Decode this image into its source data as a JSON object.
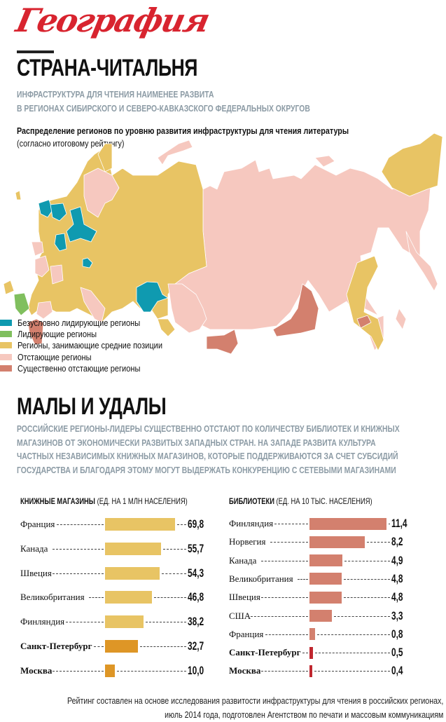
{
  "rubric": "География",
  "section1": {
    "title": "СТРАНА-ЧИТАЛЬНЯ",
    "subtitle_lines": [
      "ИНФРАСТРУКТУРА ДЛЯ ЧТЕНИЯ НАИМЕНЕЕ РАЗВИТА",
      "В РЕГИОНАХ СИБИРСКОГО И СЕВЕРО-КАВКАЗСКОГО ФЕДЕРАЛЬНЫХ ОКРУГОВ"
    ],
    "map_title": "Распределение регионов по уровню развития инфраструктуры для чтения литературы",
    "map_subtitle": "(согласно итоговому рейтингу)",
    "legend": [
      {
        "label": "Безусловно лидирующие регионы",
        "color": "#0f9ab0"
      },
      {
        "label": "Лидирующие регионы",
        "color": "#80bf5e"
      },
      {
        "label": "Регионы, занимающие средние позиции",
        "color": "#e8c464"
      },
      {
        "label": "Отстающие регионы",
        "color": "#f6c8bf"
      },
      {
        "label": "Существенно отстающие регионы",
        "color": "#d3806e"
      }
    ]
  },
  "section2": {
    "title": "МАЛЫ И УДАЛЫ",
    "paragraph_lines": [
      "РОССИЙСКИЕ РЕГИОНЫ-ЛИДЕРЫ СУЩЕСТВЕННО ОТСТАЮТ ПО КОЛИЧЕСТВУ БИБЛИОТЕК И КНИЖНЫХ",
      "МАГАЗИНОВ ОТ ЭКОНОМИЧЕСКИ РАЗВИТЫХ ЗАПАДНЫХ СТРАН. НА ЗАПАДЕ РАЗВИТА КУЛЬТУРА",
      "ЧАСТНЫХ НЕЗАВИСИМЫХ КНИЖНЫХ МАГАЗИНОВ, КОТОРЫЕ ПОДДЕРЖИВАЮТСЯ ЗА СЧЕТ СУБСИДИЙ",
      "ГОСУДАРСТВА И БЛАГОДАРЯ ЭТОМУ МОГУТ ВЫДЕРЖАТЬ КОНКУРЕНЦИЮ С СЕТЕВЫМИ МАГАЗИНАМИ"
    ]
  },
  "chart_data": [
    {
      "type": "bar",
      "title": "КНИЖНЫЕ МАГАЗИНЫ",
      "unit": "(ЕД. НА 1 МЛН НАСЕЛЕНИЯ)",
      "categories": [
        "Франция",
        "Канада",
        "Швеция",
        "Великобритания",
        "Финляндия",
        "Санкт-Петербург",
        "Москва"
      ],
      "values": [
        69.8,
        55.7,
        54.3,
        46.8,
        38.2,
        32.7,
        10.0
      ],
      "labels": [
        "69,8",
        "55,7",
        "54,3",
        "46,8",
        "38,2",
        "32,7",
        "10,0"
      ],
      "highlight": [
        false,
        false,
        false,
        false,
        false,
        true,
        true
      ],
      "color": "#e8c464",
      "highlight_color": "#de9626",
      "xlim": [
        0,
        70
      ]
    },
    {
      "type": "bar",
      "title": "БИБЛИОТЕКИ",
      "unit": "(ЕД. НА 10 ТЫС. НАСЕЛЕНИЯ)",
      "categories": [
        "Финляндия",
        "Норвегия",
        "Канада",
        "Великобритания",
        "Швеция",
        "США",
        "Франция",
        "Санкт-Петербург",
        "Москва"
      ],
      "values": [
        11.4,
        8.2,
        4.9,
        4.8,
        4.8,
        3.3,
        0.8,
        0.5,
        0.4
      ],
      "labels": [
        "11,4",
        "8,2",
        "4,9",
        "4,8",
        "4,8",
        "3,3",
        "0,8",
        "0,5",
        "0,4"
      ],
      "highlight": [
        false,
        false,
        false,
        false,
        false,
        false,
        false,
        true,
        true
      ],
      "color": "#d3806e",
      "highlight_color": "#c0272f",
      "xlim": [
        0,
        11.4
      ]
    }
  ],
  "footnote_lines": [
    "Рейтинг составлен на основе исследования развитости инфраструктуры для чтения в российских регионах,",
    "июль 2014 года, подготовлен Агентством по печати и массовым коммуникациям"
  ]
}
